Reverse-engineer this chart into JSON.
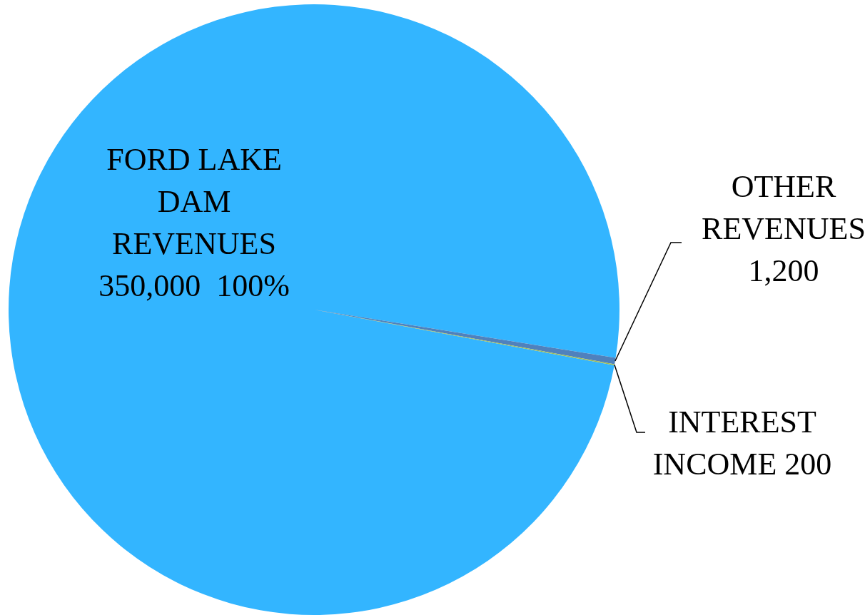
{
  "chart_data": {
    "type": "pie",
    "categories": [
      "FORD LAKE DAM REVENUES",
      "OTHER REVENUES",
      "INTEREST INCOME"
    ],
    "values": [
      350000,
      1200,
      200
    ],
    "value_labels": [
      "350,000  100%",
      "1,200",
      "200"
    ],
    "colors": [
      "#33b5ff",
      "#4f81bd",
      "#9bbb59"
    ]
  }
}
